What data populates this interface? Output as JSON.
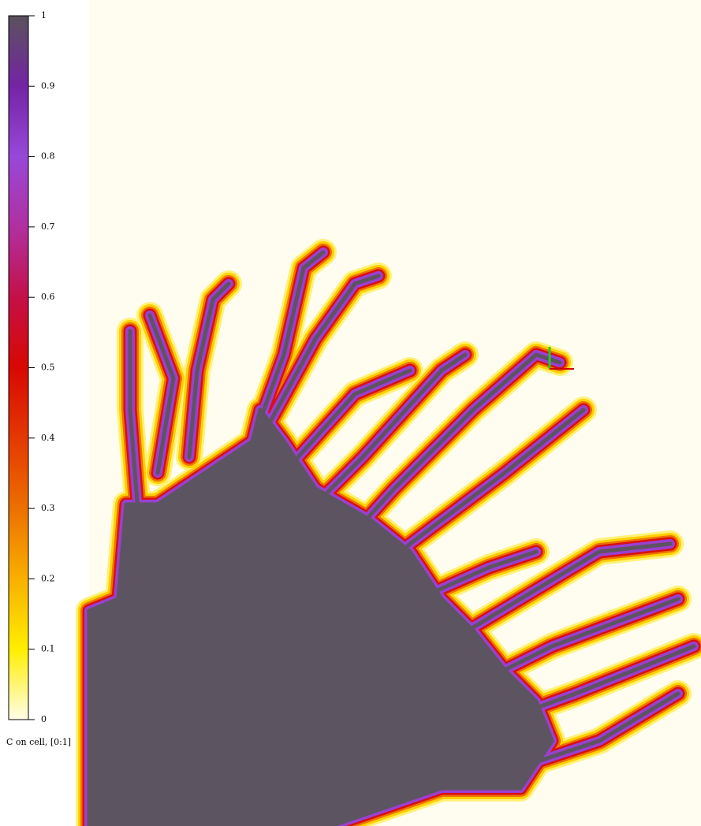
{
  "colorbar": {
    "label": "C on cell, [0:1]",
    "lim": [
      0,
      1
    ],
    "ticks": [
      0,
      0.1,
      0.2,
      0.3,
      0.4,
      0.5,
      0.6,
      0.7,
      0.8,
      0.9,
      1
    ],
    "colormap": [
      "#fffee8",
      "#ffee00",
      "#f8b000",
      "#ec7000",
      "#e43800",
      "#d80800",
      "#c41048",
      "#b030a0",
      "#9848d8",
      "#7424a4",
      "#5a525c"
    ]
  }
}
